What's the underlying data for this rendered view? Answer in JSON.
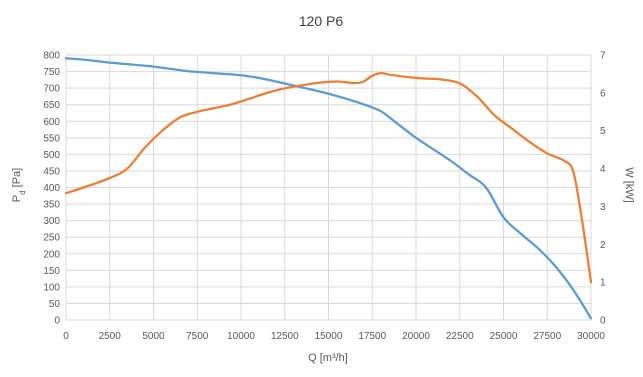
{
  "chart_data": {
    "type": "line",
    "title": "120 P6",
    "xlabel": "Q [m³/h]",
    "ylabel": "P",
    "ylabel_sub": "d",
    "ylabel_unit": " [Pa]",
    "y2label": "W [kW]",
    "xlim": [
      0,
      30000
    ],
    "ylim": [
      0,
      800
    ],
    "y2lim": [
      0,
      7
    ],
    "x_ticks": [
      0,
      2500,
      5000,
      7500,
      10000,
      12500,
      15000,
      17500,
      20000,
      22500,
      25000,
      27500,
      30000
    ],
    "y_ticks": [
      0,
      50,
      100,
      150,
      200,
      250,
      300,
      350,
      400,
      450,
      500,
      550,
      600,
      650,
      700,
      750,
      800
    ],
    "y2_ticks": [
      0,
      1,
      2,
      3,
      4,
      5,
      6,
      7
    ],
    "grid": true,
    "legend": "none",
    "series": [
      {
        "axis": "left",
        "color": "#5b9bd5",
        "x": [
          0,
          1000,
          2500,
          4000,
          5000,
          6000,
          7000,
          8000,
          9000,
          10000,
          11000,
          12000,
          13000,
          14000,
          15000,
          16000,
          17000,
          18000,
          19000,
          20000,
          21000,
          22000,
          23000,
          24000,
          25000,
          26000,
          27000,
          28000,
          29000,
          30000
        ],
        "values": [
          790,
          786,
          777,
          770,
          765,
          758,
          751,
          747,
          743,
          739,
          731,
          720,
          708,
          696,
          683,
          668,
          651,
          630,
          590,
          550,
          515,
          480,
          440,
          400,
          310,
          260,
          215,
          160,
          90,
          5
        ]
      },
      {
        "axis": "right",
        "color": "#ed7d31",
        "x": [
          0,
          1000,
          2500,
          3500,
          4500,
          5500,
          6500,
          7500,
          8500,
          9500,
          10500,
          11500,
          12500,
          13500,
          14500,
          15500,
          16500,
          17000,
          17500,
          18000,
          18500,
          19500,
          20500,
          21500,
          22500,
          23500,
          24500,
          25500,
          26500,
          27500,
          28500,
          29000,
          29500,
          30000
        ],
        "values": [
          3.35,
          3.5,
          3.75,
          4.0,
          4.55,
          5.0,
          5.35,
          5.5,
          5.6,
          5.7,
          5.85,
          6.0,
          6.12,
          6.2,
          6.27,
          6.3,
          6.26,
          6.3,
          6.45,
          6.52,
          6.48,
          6.42,
          6.38,
          6.35,
          6.25,
          5.9,
          5.4,
          5.05,
          4.7,
          4.4,
          4.2,
          3.9,
          2.6,
          1.0
        ]
      }
    ]
  }
}
